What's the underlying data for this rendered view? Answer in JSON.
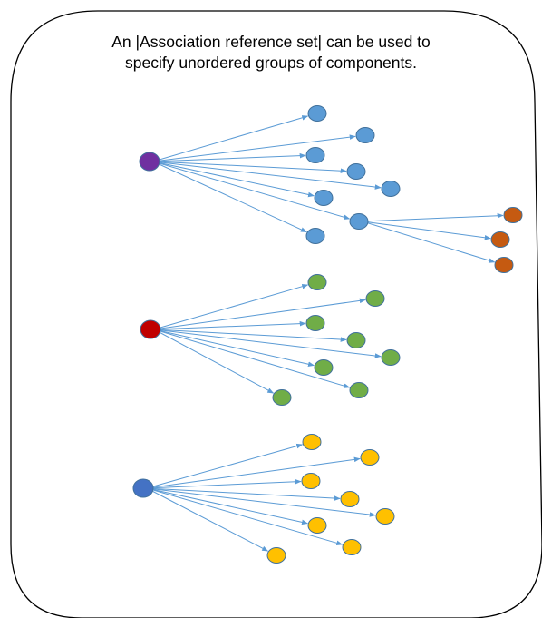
{
  "caption": {
    "line1": "An |Association reference set| can be used to",
    "line2": "specify unordered groups of components."
  },
  "colors": {
    "frame_stroke": "#000000",
    "arrow": "#5b9bd5",
    "node_outline": "#41719c",
    "purple": "#7030a0",
    "blue_child": "#5b9bd5",
    "orange": "#c55a11",
    "red": "#c00000",
    "green": "#70ad47",
    "dark_blue": "#4472c4",
    "yellow": "#ffc000"
  },
  "groups": [
    {
      "name": "purple-group",
      "root_color": "purple",
      "child_color": "blue_child",
      "child_count": 8,
      "has_subgroup": true,
      "sub_color": "orange",
      "sub_count": 3
    },
    {
      "name": "red-group",
      "root_color": "red",
      "child_color": "green",
      "child_count": 8,
      "has_subgroup": false
    },
    {
      "name": "blue-group",
      "root_color": "dark_blue",
      "child_color": "yellow",
      "child_count": 8,
      "has_subgroup": false
    }
  ]
}
